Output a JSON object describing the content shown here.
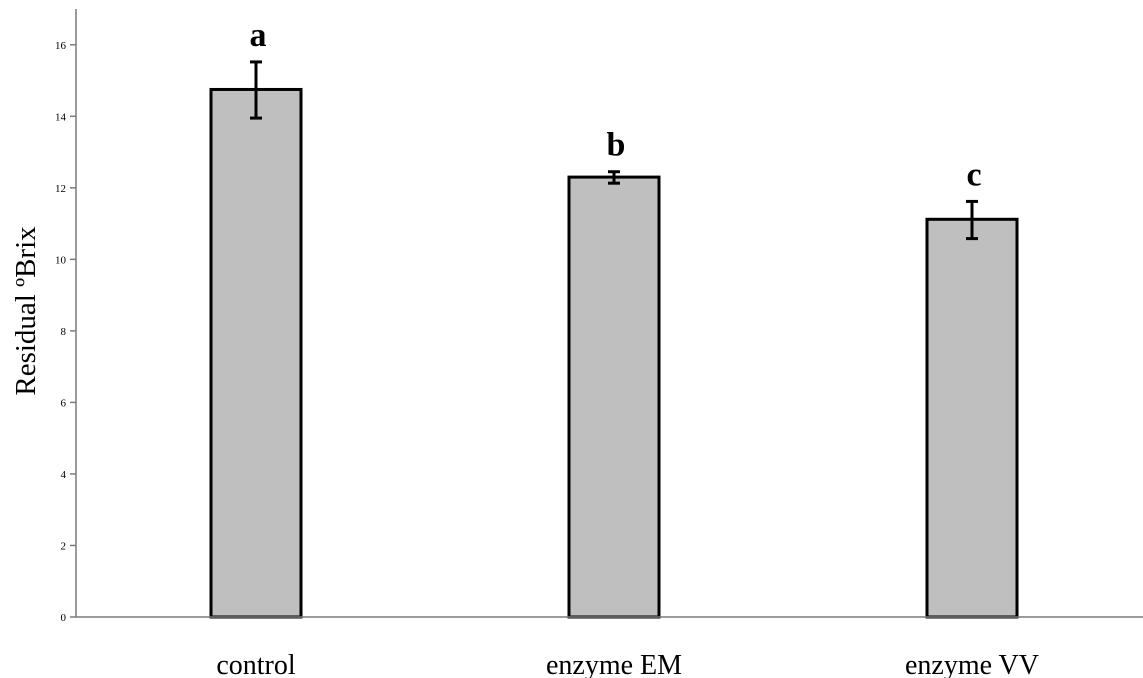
{
  "chart_data": {
    "type": "bar",
    "title": "",
    "xlabel": "",
    "ylabel": "Residual ºBrix",
    "categories": [
      "control",
      "enzyme EM",
      "enzyme VV"
    ],
    "values": [
      14.75,
      12.3,
      11.12
    ],
    "error_low": [
      13.95,
      12.13,
      10.58
    ],
    "error_high": [
      15.52,
      12.45,
      11.62
    ],
    "significance_letters": [
      "a",
      "b",
      "c"
    ],
    "ylim": [
      0,
      17
    ],
    "yticks": [
      0,
      2,
      4,
      6,
      8,
      10,
      12,
      14,
      16
    ],
    "bar_color": "#bfbfbf",
    "edge_color": "#000000",
    "grid": false,
    "legend": "none"
  }
}
